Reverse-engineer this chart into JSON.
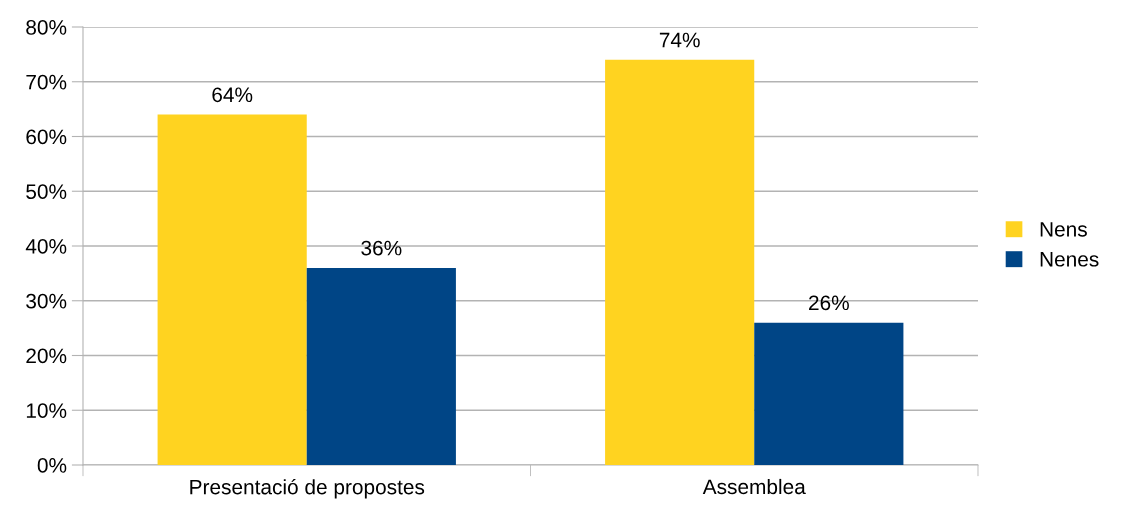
{
  "chart_data": {
    "type": "bar",
    "categories": [
      "Presentació de propostes",
      "Assemblea"
    ],
    "series": [
      {
        "name": "Nens",
        "color": "#ffd320",
        "values": [
          64,
          74
        ],
        "value_labels": [
          "64%",
          "74%"
        ]
      },
      {
        "name": "Nenes",
        "color": "#004586",
        "values": [
          36,
          26
        ],
        "value_labels": [
          "36%",
          "26%"
        ]
      }
    ],
    "ylim": [
      0,
      80
    ],
    "yticks": [
      {
        "value": 0,
        "label": "0%"
      },
      {
        "value": 10,
        "label": "10%"
      },
      {
        "value": 20,
        "label": "20%"
      },
      {
        "value": 30,
        "label": "30%"
      },
      {
        "value": 40,
        "label": "40%"
      },
      {
        "value": 50,
        "label": "50%"
      },
      {
        "value": 60,
        "label": "60%"
      },
      {
        "value": 70,
        "label": "70%"
      },
      {
        "value": 80,
        "label": "80%"
      }
    ],
    "grid": "y",
    "legend": "right"
  }
}
